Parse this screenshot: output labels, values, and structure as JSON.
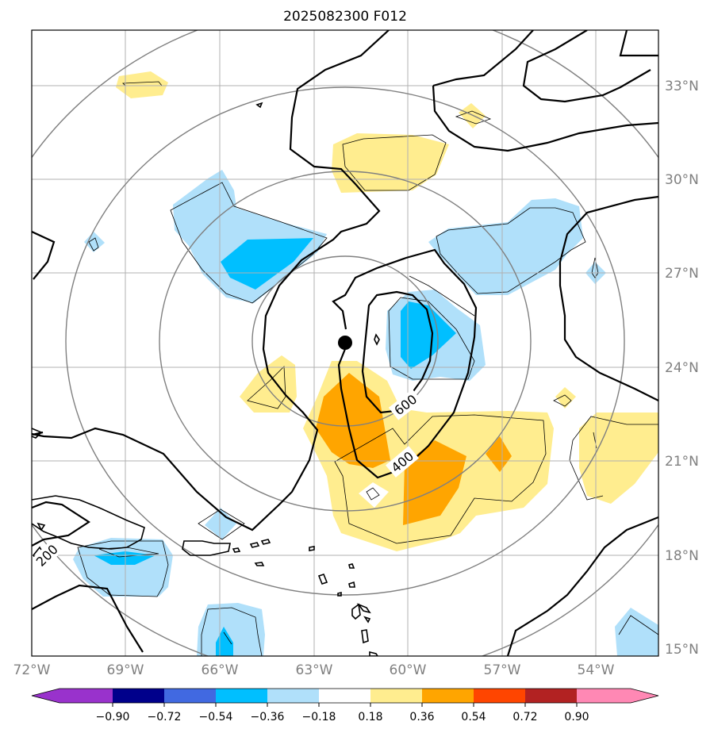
{
  "title": "2025082300 F012",
  "colors": {
    "light_yellow": "#ffed8f",
    "orange": "#ffa500",
    "light_blue": "#b0e0fa",
    "deep_sky_blue": "#00bfff",
    "grid": "#b0b0b0",
    "range_rings": "#808080",
    "contours": "#000000"
  },
  "map": {
    "lon_range": [
      -72,
      -52
    ],
    "lat_range": [
      15,
      35
    ],
    "lat_labels": [
      "33°N",
      "30°N",
      "27°N",
      "24°N",
      "21°N",
      "18°N",
      "15°N"
    ],
    "lon_labels": [
      "72°W",
      "69°W",
      "66°W",
      "63°W",
      "60°W",
      "57°W",
      "54°W"
    ]
  },
  "storm_center": {
    "lon": -62.0,
    "lat": 24.8,
    "icon": "filled-circle-icon"
  },
  "contour_labels": [
    "600",
    "400",
    "200"
  ],
  "colorbar": {
    "ticks": [
      "−0.90",
      "−0.72",
      "−0.54",
      "−0.36",
      "−0.18",
      "0.18",
      "0.36",
      "0.54",
      "0.72",
      "0.90"
    ],
    "colors": [
      "#9932cc",
      "#00008b",
      "#4169e1",
      "#00bfff",
      "#b0e0fa",
      "#ffffff",
      "#ffed8f",
      "#ffa500",
      "#ff4500",
      "#b22222",
      "#ff88b4"
    ]
  }
}
